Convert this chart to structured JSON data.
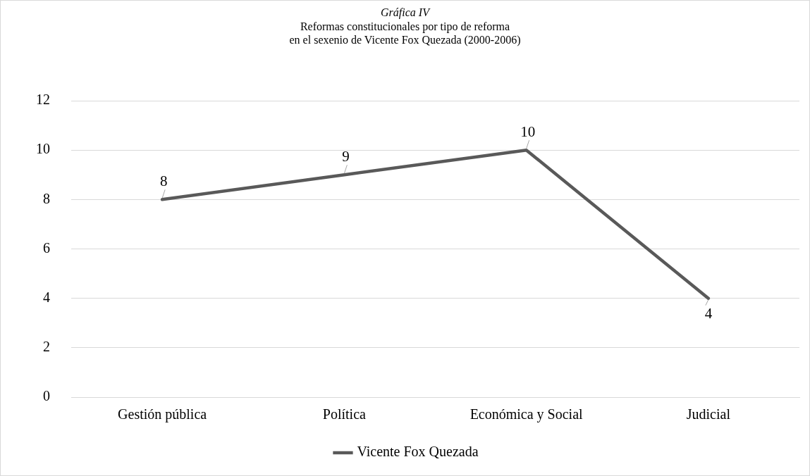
{
  "chart_data": {
    "type": "line",
    "title": "Gráfica IV",
    "subtitle": "Reformas constitucionales por tipo de reforma\nen el sexenio de Vicente Fox Quezada (2000-2006)",
    "categories": [
      "Gestión pública",
      "Política",
      "Económica y Social",
      "Judicial"
    ],
    "series": [
      {
        "name": "Vicente Fox Quezada",
        "color": "#595959",
        "values": [
          8,
          9,
          10,
          4
        ]
      }
    ],
    "ylim": [
      0,
      12
    ],
    "yticks": [
      0,
      2,
      4,
      6,
      8,
      10,
      12
    ],
    "grid": "y",
    "legend": "bottom",
    "data_labels": true,
    "marker": "none",
    "line_style": "solid"
  }
}
